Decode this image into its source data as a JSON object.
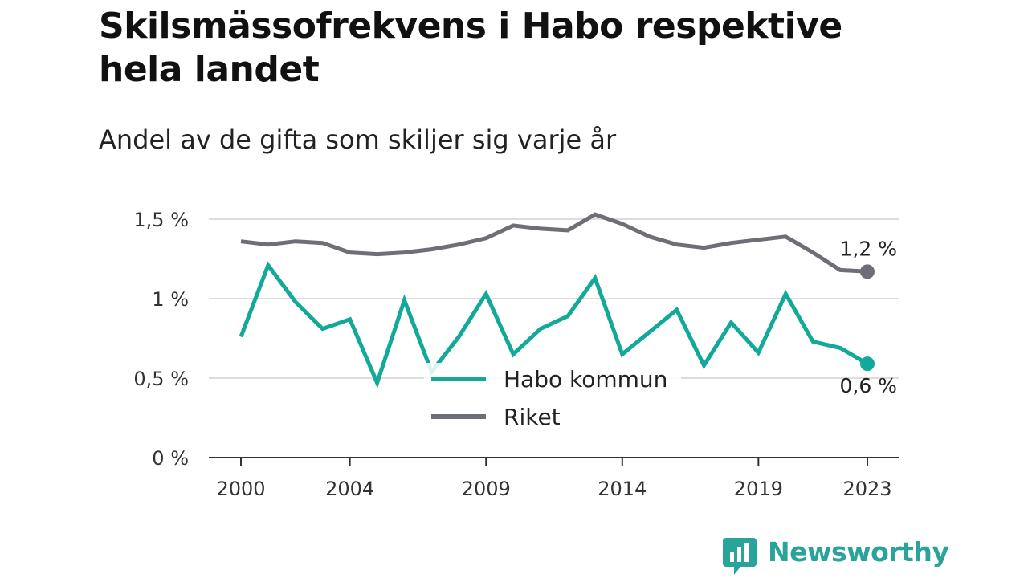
{
  "title": "Skilsmässofrekvens i Habo respektive hela landet",
  "subtitle": "Andel av de gifta som skiljer sig varje år",
  "brand": "Newsworthy",
  "colors": {
    "habo": "#12a89a",
    "riket": "#6e6e76",
    "grid": "#dddddd",
    "axis": "#333333",
    "brand": "#2aa39a"
  },
  "chart_data": {
    "type": "line",
    "title": "Skilsmässofrekvens i Habo respektive hela landet",
    "subtitle": "Andel av de gifta som skiljer sig varje år",
    "xlabel": "",
    "ylabel": "",
    "x": [
      2000,
      2001,
      2002,
      2003,
      2004,
      2005,
      2006,
      2007,
      2008,
      2009,
      2010,
      2011,
      2012,
      2013,
      2014,
      2015,
      2016,
      2017,
      2018,
      2019,
      2020,
      2021,
      2022,
      2023
    ],
    "series": [
      {
        "name": "Habo kommun",
        "color": "#12a89a",
        "values": [
          0.76,
          1.21,
          0.98,
          0.81,
          0.87,
          0.47,
          0.99,
          0.54,
          0.76,
          1.03,
          0.65,
          0.81,
          0.89,
          1.13,
          0.65,
          0.79,
          0.93,
          0.58,
          0.85,
          0.66,
          1.03,
          0.73,
          0.69,
          0.59
        ]
      },
      {
        "name": "Riket",
        "color": "#6e6e76",
        "values": [
          1.36,
          1.34,
          1.36,
          1.35,
          1.29,
          1.28,
          1.29,
          1.31,
          1.34,
          1.38,
          1.46,
          1.44,
          1.43,
          1.53,
          1.47,
          1.39,
          1.34,
          1.32,
          1.35,
          1.37,
          1.39,
          1.29,
          1.18,
          1.17
        ]
      }
    ],
    "ylim": [
      0,
      1.5
    ],
    "y_ticks": [
      0,
      0.5,
      1,
      1.5
    ],
    "y_tick_labels": [
      "0 %",
      "0,5 %",
      "1 %",
      "1,5 %"
    ],
    "x_ticks": [
      2000,
      2004,
      2009,
      2014,
      2019,
      2023
    ],
    "x_tick_labels": [
      "2000",
      "2004",
      "2009",
      "2014",
      "2019",
      "2023"
    ],
    "end_labels": {
      "Riket": "1,2 %",
      "Habo kommun": "0,6 %"
    },
    "legend": [
      "Habo kommun",
      "Riket"
    ],
    "legend_position": "bottom-center",
    "grid": true
  }
}
